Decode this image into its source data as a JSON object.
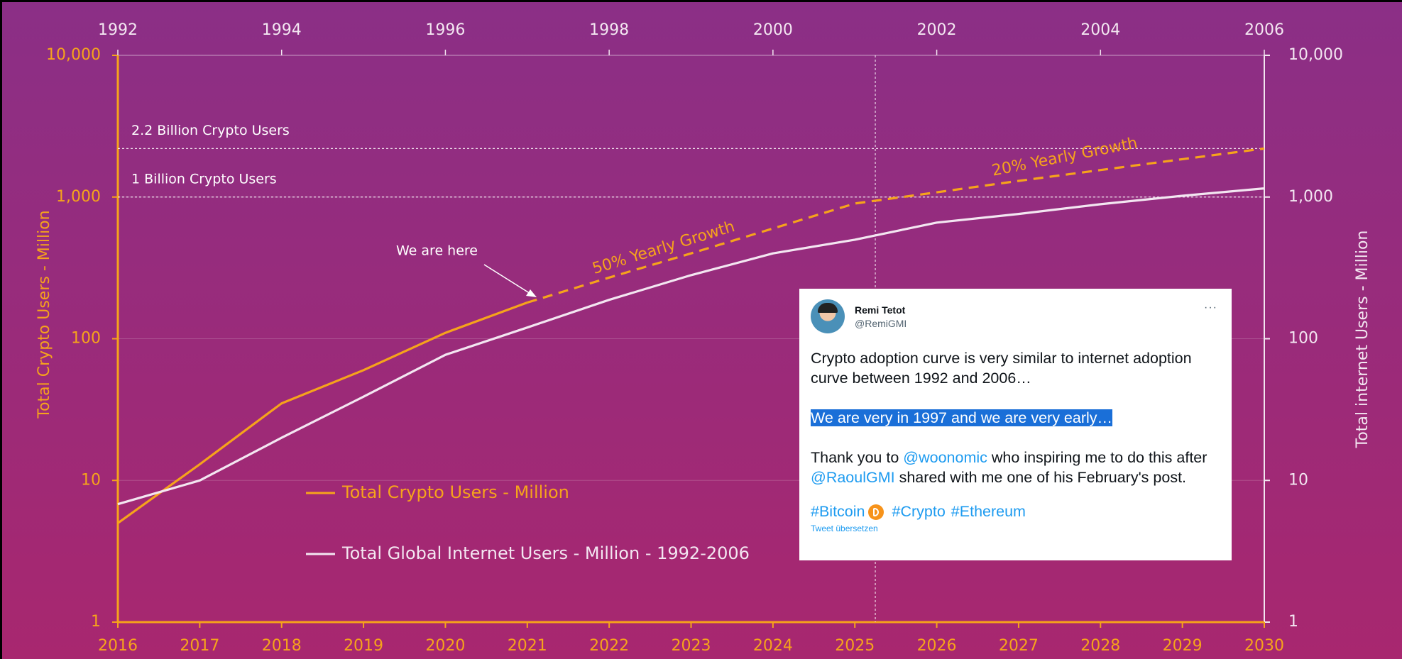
{
  "chart_data": {
    "type": "line",
    "x": [
      2016,
      2017,
      2018,
      2019,
      2020,
      2021,
      2022,
      2023,
      2024,
      2025,
      2026,
      2027,
      2028,
      2029,
      2030
    ],
    "x2": [
      1992,
      1993,
      1994,
      1995,
      1996,
      1997,
      1998,
      1999,
      2000,
      2001,
      2002,
      2003,
      2004,
      2005,
      2006
    ],
    "xlim": [
      2016,
      2030
    ],
    "xticks": [
      2016,
      2017,
      2018,
      2019,
      2020,
      2021,
      2022,
      2023,
      2024,
      2025,
      2026,
      2027,
      2028,
      2029,
      2030
    ],
    "x2lim": [
      1992,
      2006
    ],
    "x2ticks": [
      1992,
      1994,
      1996,
      1998,
      2000,
      2002,
      2004,
      2006
    ],
    "ylim": [
      1,
      10000
    ],
    "yticks": [
      1,
      10,
      100,
      {
        "value": 1000,
        "label": "1,000"
      },
      {
        "value": 10000,
        "label": "10,000"
      }
    ],
    "y2lim": [
      1,
      10000
    ],
    "y2ticks": [
      1,
      10,
      100,
      {
        "value": 1000,
        "label": "1,000"
      },
      {
        "value": 10000,
        "label": "10,000"
      }
    ],
    "log_scale": true,
    "grid": true,
    "ylabel": "Total Crypto Users - Million",
    "y2label": "Total internet Users - Million",
    "legend": "left",
    "series": [
      {
        "name": "Total Crypto Users - Million",
        "color": "#f6a31b",
        "dashed_from": 5,
        "values": [
          5,
          13,
          35,
          60,
          110,
          180,
          270,
          400,
          600,
          900,
          1080,
          1300,
          1550,
          1850,
          2200
        ]
      },
      {
        "name": "Total Global Internet Users - Million - 1992-2006",
        "color": "#f3e6f1",
        "xaxis": "x2",
        "axis": "y2",
        "values": [
          6.8,
          10,
          20,
          39,
          77,
          120,
          188,
          281,
          400,
          500,
          660,
          760,
          890,
          1020,
          1150
        ]
      }
    ],
    "hlines": [
      {
        "value": 2200,
        "label": "2.2 Billion Crypto Users"
      },
      {
        "value": 1000,
        "label": "1 Billion Crypto Users"
      }
    ],
    "vlines": [
      2025.25
    ],
    "annotations": [
      "We are here",
      "50% Yearly Growth",
      "20% Yearly Growth"
    ]
  },
  "tweet": {
    "name": "Remi Tetot",
    "handle": "@RemiGMI",
    "menu": "···",
    "intro": "Crypto adoption curve is very similar to internet adoption curve between 1992 and 2006…",
    "highlight": "We are very in 1997 and we are very early…",
    "thanks": [
      "Thank you to ",
      "@woonomic",
      " who inspiring me to do this after ",
      "@RaoulGMI",
      " shared with me one of his February's post."
    ],
    "hashtags": [
      "#Bitcoin",
      "#Crypto",
      "#Ethereum"
    ],
    "translate": "Tweet übersetzen"
  }
}
